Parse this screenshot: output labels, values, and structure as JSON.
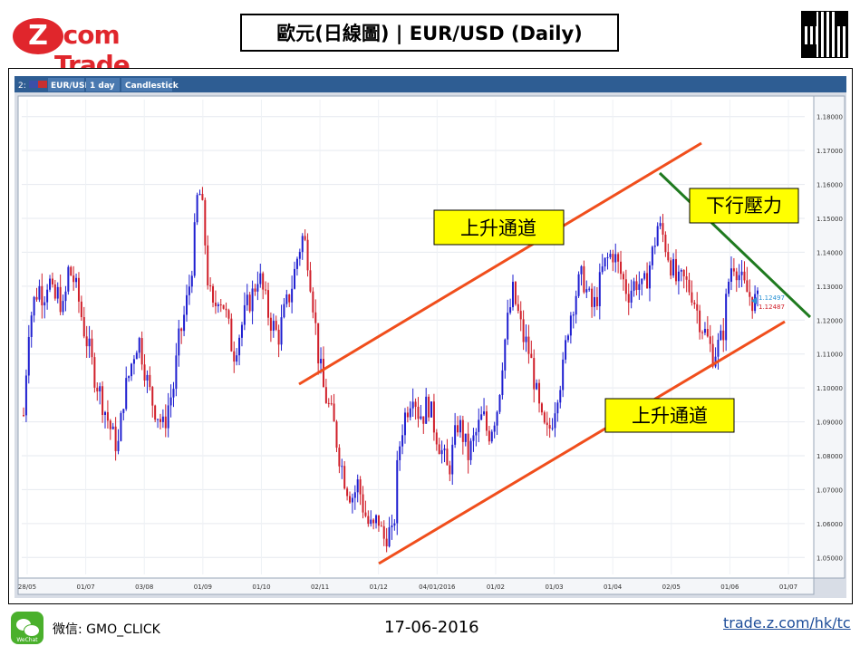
{
  "header": {
    "logo_z": "Z",
    "logo_text": ".com Trade",
    "title": "歐元(日線圖) | EUR/USD  (Daily)"
  },
  "toolbar": {
    "number": "2:",
    "symbol": "EUR/USD",
    "interval": "1 day",
    "chart_style": "Candlestick"
  },
  "annotations": {
    "upper_channel_label": "上升通道",
    "lower_channel_label": "上升通道",
    "resistance_label": "下行壓力"
  },
  "footer": {
    "wechat_icon_label": "WeChat",
    "wechat": "微信: GMO_CLICK",
    "date": "17-06-2016",
    "link": "trade.z.com/hk/tc"
  },
  "chart_data": {
    "type": "candlestick",
    "symbol": "EUR/USD",
    "interval": "1 day",
    "ylim": [
      1.045,
      1.185
    ],
    "y_ticks": [
      "1.18000",
      "1.17000",
      "1.16000",
      "1.15000",
      "1.14000",
      "1.13000",
      "1.12000",
      "1.11000",
      "1.10000",
      "1.09000",
      "1.08000",
      "1.07000",
      "1.06000",
      "1.05000"
    ],
    "x_ticks": [
      "28/05",
      "01/07",
      "03/08",
      "01/09",
      "01/10",
      "02/11",
      "01/12",
      "04/01/2016",
      "01/02",
      "01/03",
      "01/04",
      "02/05",
      "01/06",
      "01/07"
    ],
    "price_labels": {
      "ask": "1.12497",
      "bid": "1.12487"
    },
    "colors": {
      "up": "#1f1fd0",
      "down": "#d01f2a",
      "channel": "#f04e1c",
      "resistance": "#1f7a1f"
    },
    "closes": [
      1.092,
      1.118,
      1.125,
      1.13,
      1.127,
      1.133,
      1.125,
      1.128,
      1.122,
      1.135,
      1.132,
      1.126,
      1.118,
      1.112,
      1.105,
      1.1,
      1.095,
      1.09,
      1.085,
      1.083,
      1.097,
      1.103,
      1.11,
      1.115,
      1.108,
      1.1,
      1.095,
      1.092,
      1.088,
      1.095,
      1.1,
      1.113,
      1.12,
      1.128,
      1.14,
      1.16,
      1.15,
      1.13,
      1.122,
      1.128,
      1.125,
      1.118,
      1.11,
      1.115,
      1.12,
      1.125,
      1.128,
      1.134,
      1.128,
      1.122,
      1.118,
      1.115,
      1.121,
      1.126,
      1.132,
      1.14,
      1.145,
      1.138,
      1.125,
      1.11,
      1.1,
      1.095,
      1.09,
      1.082,
      1.075,
      1.07,
      1.068,
      1.072,
      1.065,
      1.06,
      1.058,
      1.062,
      1.055,
      1.058,
      1.055,
      1.08,
      1.09,
      1.095,
      1.1,
      1.093,
      1.092,
      1.096,
      1.09,
      1.085,
      1.08,
      1.075,
      1.082,
      1.09,
      1.086,
      1.08,
      1.084,
      1.088,
      1.092,
      1.086,
      1.09,
      1.095,
      1.11,
      1.12,
      1.128,
      1.122,
      1.115,
      1.112,
      1.105,
      1.095,
      1.088,
      1.086,
      1.092,
      1.1,
      1.105,
      1.118,
      1.125,
      1.13,
      1.133,
      1.127,
      1.123,
      1.128,
      1.135,
      1.138,
      1.14,
      1.136,
      1.132,
      1.128,
      1.13,
      1.132,
      1.128,
      1.134,
      1.14,
      1.148,
      1.145,
      1.14,
      1.135,
      1.13,
      1.132,
      1.13,
      1.128,
      1.122,
      1.118,
      1.114,
      1.11,
      1.112,
      1.115,
      1.13,
      1.138,
      1.135,
      1.13,
      1.128,
      1.126,
      1.125
    ]
  }
}
